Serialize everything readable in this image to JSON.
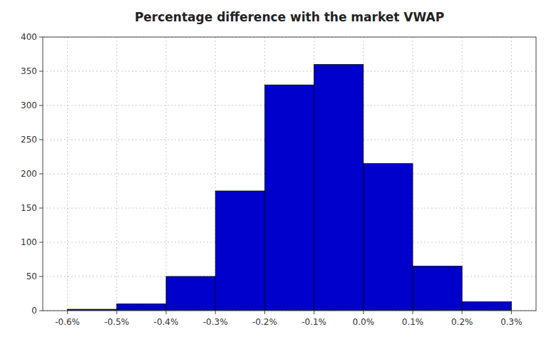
{
  "chart_data": {
    "type": "histogram",
    "title": "Percentage difference with the market VWAP",
    "bins": [
      -0.006,
      -0.005,
      -0.004,
      -0.003,
      -0.002,
      -0.001,
      0.0,
      0.001,
      0.002,
      0.003
    ],
    "values": [
      2,
      10,
      50,
      175,
      330,
      360,
      215,
      65,
      13
    ],
    "color": "#0000CC",
    "xlim": [
      -0.0065,
      0.0035
    ],
    "ylim": [
      0,
      400
    ],
    "xticks": [
      {
        "value": -0.006,
        "label": "-0.6%"
      },
      {
        "value": -0.005,
        "label": "-0.5%"
      },
      {
        "value": -0.004,
        "label": "-0.4%"
      },
      {
        "value": -0.003,
        "label": "-0.3%"
      },
      {
        "value": -0.002,
        "label": "-0.2%"
      },
      {
        "value": -0.001,
        "label": "-0.1%"
      },
      {
        "value": 0.0,
        "label": "0.0%"
      },
      {
        "value": 0.001,
        "label": "0.1%"
      },
      {
        "value": 0.002,
        "label": "0.2%"
      },
      {
        "value": 0.003,
        "label": "0.3%"
      }
    ],
    "yticks": [
      0,
      50,
      100,
      150,
      200,
      250,
      300,
      350,
      400
    ],
    "grid": true
  }
}
